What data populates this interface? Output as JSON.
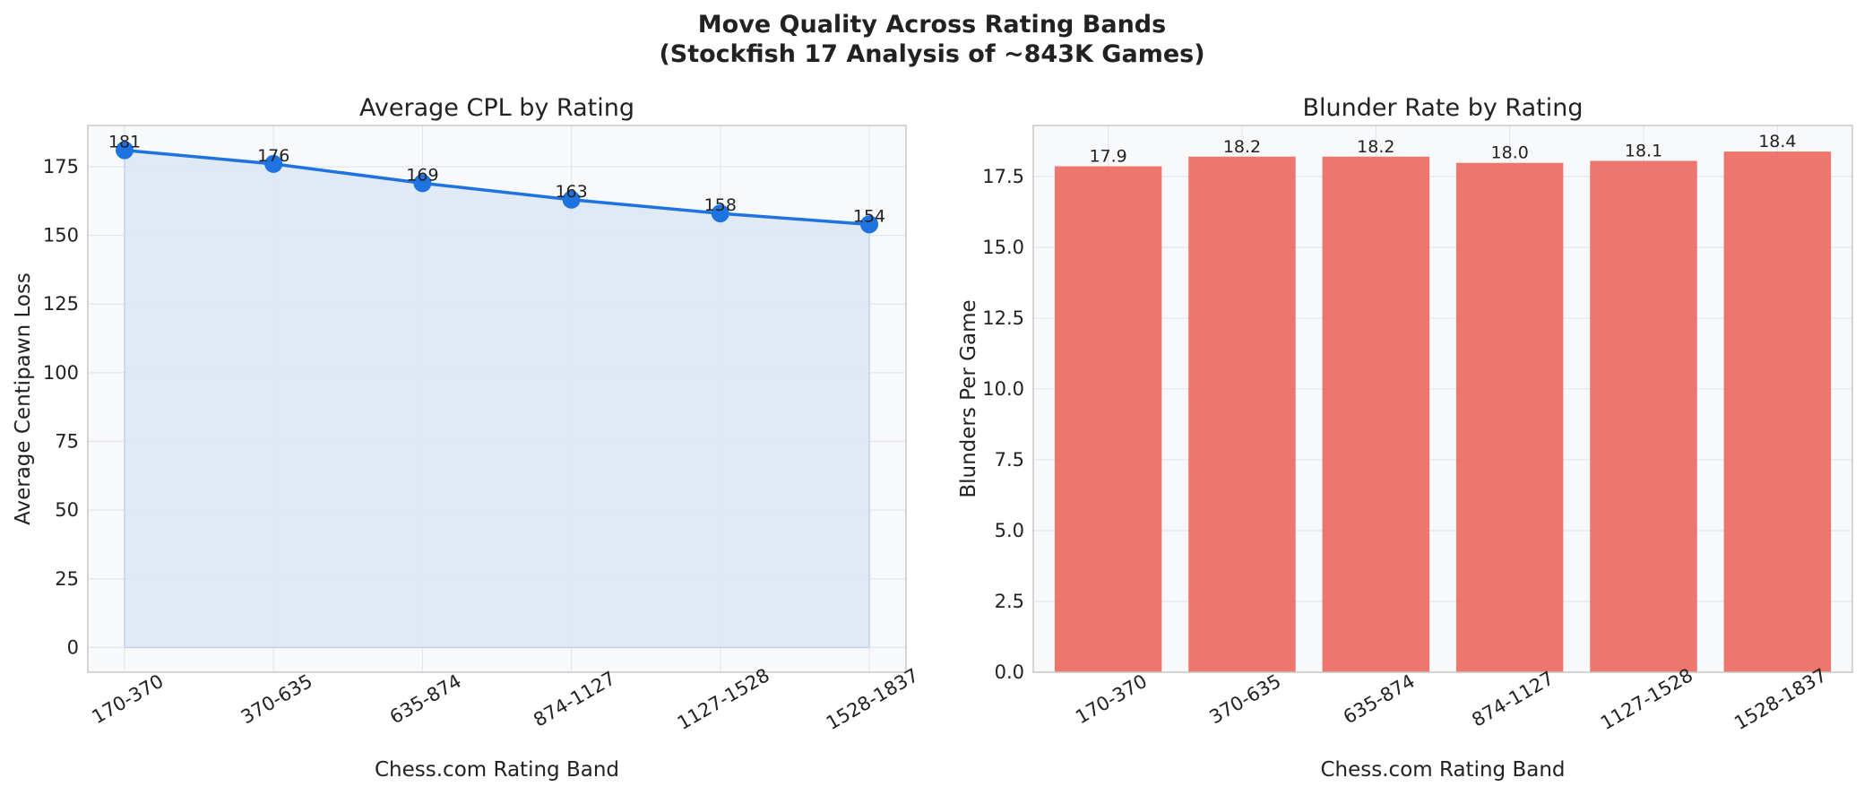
{
  "figure": {
    "title_line1": "Move Quality Across Rating Bands",
    "title_line2": "(Stockfish 17 Analysis of ~843K Games)"
  },
  "colors": {
    "line": "#1f73e0",
    "area_fill": "#dce7f6",
    "bar": "#eb6b60",
    "plot_bg": "#f8f9fb",
    "grid": "#e3e6ec",
    "axis_frame": "#c8c8c8",
    "text": "#222222"
  },
  "chart_data": [
    {
      "type": "line",
      "title": "Average CPL by Rating",
      "xlabel": "Chess.com Rating Band",
      "ylabel": "Average Centipawn Loss",
      "categories": [
        "170-370",
        "370-635",
        "635-874",
        "874-1127",
        "1127-1528",
        "1528-1837"
      ],
      "values": [
        181,
        176,
        169,
        163,
        158,
        154
      ],
      "data_labels": [
        "181",
        "176",
        "169",
        "163",
        "158",
        "154"
      ],
      "ylim": [
        -9,
        190
      ],
      "yticks": [
        0,
        25,
        50,
        75,
        100,
        125,
        150,
        175
      ],
      "ytick_labels": [
        "0",
        "25",
        "50",
        "75",
        "100",
        "125",
        "150",
        "175"
      ],
      "area_fill": true,
      "markers": true,
      "grid": true
    },
    {
      "type": "bar",
      "title": "Blunder Rate by Rating",
      "xlabel": "Chess.com Rating Band",
      "ylabel": "Blunders Per Game",
      "categories": [
        "170-370",
        "370-635",
        "635-874",
        "874-1127",
        "1127-1528",
        "1528-1837"
      ],
      "values": [
        17.86,
        18.2,
        18.2,
        17.98,
        18.05,
        18.38
      ],
      "data_labels": [
        "17.9",
        "18.2",
        "18.2",
        "18.0",
        "18.1",
        "18.4"
      ],
      "ylim": [
        0,
        19.3
      ],
      "yticks": [
        0,
        2.5,
        5,
        7.5,
        10,
        12.5,
        15,
        17.5
      ],
      "ytick_labels": [
        "0.0",
        "2.5",
        "5.0",
        "7.5",
        "10.0",
        "12.5",
        "15.0",
        "17.5"
      ],
      "grid": true
    }
  ]
}
